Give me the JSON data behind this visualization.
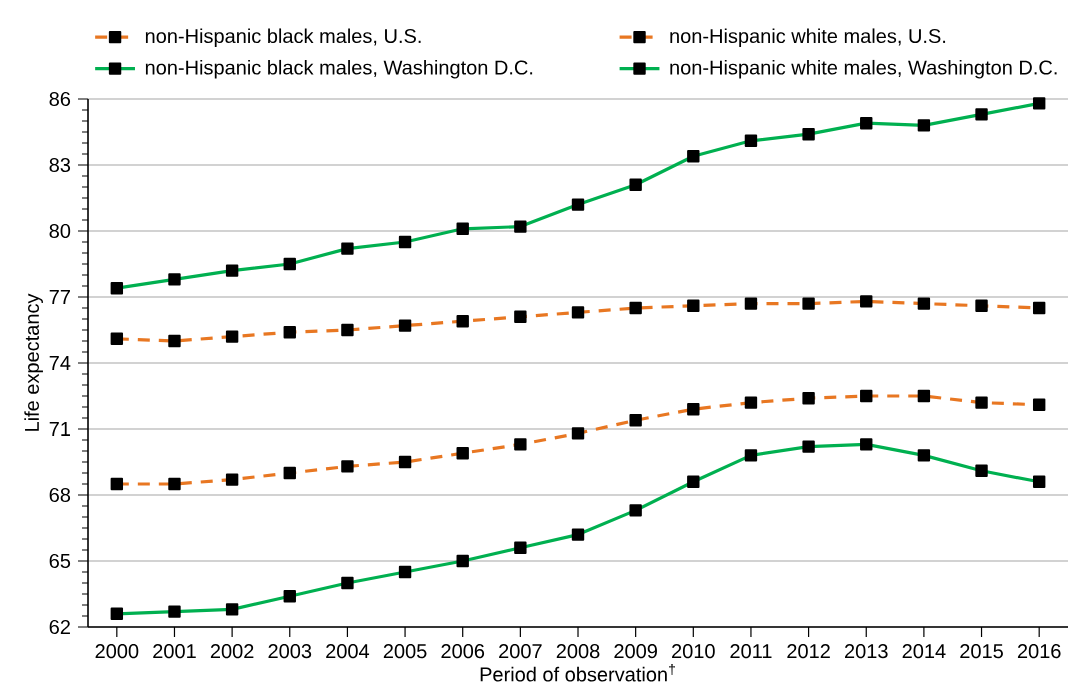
{
  "chart_data": {
    "type": "line",
    "xlabel": "Period of observation$^{†}$",
    "ylabel": "Life expectancy",
    "categories": [
      "2000",
      "2001",
      "2002",
      "2003",
      "2004",
      "2005",
      "2006",
      "2007",
      "2008",
      "2009",
      "2010",
      "2011",
      "2012",
      "2013",
      "2014",
      "2015",
      "2016"
    ],
    "series": [
      {
        "name": "non-Hispanic black males, U.S.",
        "color": "#e87722",
        "line_style": "dashed",
        "values": [
          68.5,
          68.5,
          68.7,
          69.0,
          69.3,
          69.5,
          69.9,
          70.3,
          70.8,
          71.4,
          71.9,
          72.2,
          72.4,
          72.5,
          72.5,
          72.2,
          72.1
        ]
      },
      {
        "name": "non-Hispanic white males, U.S.",
        "color": "#e87722",
        "line_style": "dashed",
        "values": [
          75.1,
          75.0,
          75.2,
          75.4,
          75.5,
          75.7,
          75.9,
          76.1,
          76.3,
          76.5,
          76.6,
          76.7,
          76.7,
          76.8,
          76.7,
          76.6,
          76.5
        ]
      },
      {
        "name": "non-Hispanic black males, Washington D.C.",
        "color": "#00b050",
        "line_style": "solid",
        "values": [
          62.6,
          62.7,
          62.8,
          63.4,
          64.0,
          64.5,
          65.0,
          65.6,
          66.2,
          67.3,
          68.6,
          69.8,
          70.2,
          70.3,
          69.8,
          69.1,
          68.6
        ]
      },
      {
        "name": "non-Hispanic white males, Washington D.C.",
        "color": "#00b050",
        "line_style": "solid",
        "values": [
          77.4,
          77.8,
          78.2,
          78.5,
          79.2,
          79.5,
          80.1,
          80.2,
          81.2,
          82.1,
          83.4,
          84.1,
          84.4,
          84.9,
          84.8,
          85.3,
          85.8
        ]
      }
    ],
    "ylim": [
      62,
      86
    ],
    "yticks": [
      62,
      65,
      68,
      71,
      74,
      77,
      80,
      83,
      86
    ],
    "grid": "y",
    "legend": "top",
    "marker": "square"
  }
}
